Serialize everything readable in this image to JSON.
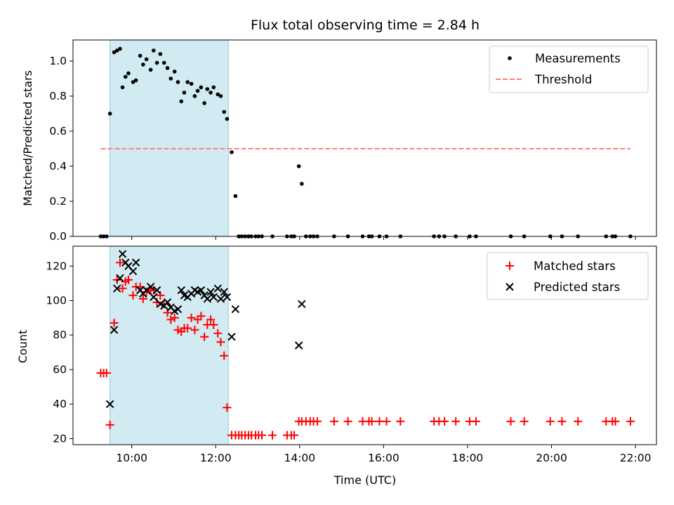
{
  "chart_data": {
    "title": "Flux total observing time = 2.84 h",
    "xlabel": "Time (UTC)",
    "x_unit": "hours UTC",
    "xlim": [
      8.6,
      22.5
    ],
    "xticks": [
      10,
      12,
      14,
      16,
      18,
      20,
      22
    ],
    "xtick_labels": [
      "10:00",
      "12:00",
      "14:00",
      "16:00",
      "18:00",
      "20:00",
      "22:00"
    ],
    "shaded_interval": {
      "x": [
        9.48,
        12.3
      ],
      "color": "#add8e6"
    },
    "panels": [
      {
        "type": "scatter",
        "ylabel": "Matched/Predicted stars",
        "ylim": [
          0,
          1.12
        ],
        "yticks": [
          0.0,
          0.2,
          0.4,
          0.6,
          0.8,
          1.0
        ],
        "ytick_labels": [
          "0.0",
          "0.2",
          "0.4",
          "0.6",
          "0.8",
          "1.0"
        ],
        "legend": {
          "position": "upper right"
        },
        "series": [
          {
            "name": "Measurements",
            "marker": "dot",
            "color": "#000000",
            "x": [
              9.26,
              9.33,
              9.4,
              9.48,
              9.58,
              9.65,
              9.72,
              9.78,
              9.85,
              9.92,
              10.03,
              10.1,
              10.2,
              10.27,
              10.35,
              10.45,
              10.52,
              10.6,
              10.68,
              10.77,
              10.85,
              10.93,
              11.02,
              11.1,
              11.18,
              11.25,
              11.33,
              11.42,
              11.5,
              11.57,
              11.65,
              11.73,
              11.8,
              11.88,
              11.95,
              12.05,
              12.12,
              12.2,
              12.27,
              12.38,
              12.47,
              12.55,
              12.62,
              12.7,
              12.78,
              12.85,
              12.95,
              13.02,
              13.1,
              13.35,
              13.7,
              13.8,
              13.87,
              13.98,
              14.05,
              14.15,
              14.25,
              14.33,
              14.42,
              14.82,
              15.15,
              15.5,
              15.65,
              15.72,
              15.9,
              16.07,
              16.4,
              17.2,
              17.32,
              17.45,
              17.72,
              18.05,
              18.2,
              19.03,
              19.35,
              19.97,
              20.25,
              20.63,
              21.3,
              21.45,
              21.52,
              21.88
            ],
            "y": [
              0,
              0,
              0,
              0.7,
              1.05,
              1.06,
              1.07,
              0.85,
              0.91,
              0.93,
              0.88,
              0.89,
              1.03,
              0.98,
              1.01,
              0.95,
              1.06,
              0.99,
              1.04,
              0.99,
              0.96,
              0.9,
              0.94,
              0.88,
              0.77,
              0.82,
              0.88,
              0.87,
              0.8,
              0.83,
              0.85,
              0.76,
              0.84,
              0.82,
              0.85,
              0.81,
              0.8,
              0.71,
              0.67,
              0.48,
              0.23,
              0,
              0,
              0,
              0,
              0,
              0,
              0,
              0,
              0,
              0,
              0,
              0,
              0.4,
              0.3,
              0,
              0,
              0,
              0,
              0,
              0,
              0,
              0,
              0,
              0,
              0,
              0,
              0,
              0,
              0,
              0,
              0,
              0,
              0,
              0,
              0,
              0,
              0,
              0,
              0,
              0,
              0
            ]
          },
          {
            "name": "Threshold",
            "type": "line",
            "style": "dashed",
            "color": "#ff8080",
            "x": [
              9.26,
              21.88
            ],
            "y": [
              0.5,
              0.5
            ]
          }
        ]
      },
      {
        "type": "scatter",
        "ylabel": "Count",
        "ylim": [
          16.5,
          131.5
        ],
        "yticks": [
          20,
          40,
          60,
          80,
          100,
          120
        ],
        "ytick_labels": [
          "20",
          "40",
          "60",
          "80",
          "100",
          "120"
        ],
        "legend": {
          "position": "upper right"
        },
        "series": [
          {
            "name": "Matched stars",
            "marker": "plus",
            "color": "#ff0000",
            "x": [
              9.26,
              9.33,
              9.4,
              9.48,
              9.58,
              9.65,
              9.72,
              9.78,
              9.85,
              9.92,
              10.03,
              10.1,
              10.2,
              10.27,
              10.35,
              10.45,
              10.52,
              10.6,
              10.68,
              10.77,
              10.85,
              10.93,
              11.02,
              11.1,
              11.18,
              11.25,
              11.33,
              11.42,
              11.5,
              11.57,
              11.65,
              11.73,
              11.8,
              11.88,
              11.95,
              12.05,
              12.12,
              12.2,
              12.27,
              12.38,
              12.47,
              12.55,
              12.62,
              12.7,
              12.78,
              12.85,
              12.95,
              13.02,
              13.1,
              13.35,
              13.7,
              13.8,
              13.87,
              13.98,
              14.05,
              14.15,
              14.25,
              14.33,
              14.42,
              14.82,
              15.15,
              15.5,
              15.65,
              15.72,
              15.9,
              16.07,
              16.4,
              17.2,
              17.32,
              17.45,
              17.72,
              18.05,
              18.2,
              19.03,
              19.35,
              19.97,
              20.25,
              20.63,
              21.3,
              21.45,
              21.52,
              21.88
            ],
            "y": [
              58,
              58,
              58,
              28,
              87,
              112,
              122,
              107,
              111,
              112,
              103,
              108,
              108,
              101,
              105,
              106,
              106,
              99,
              103,
              98,
              93,
              89,
              90,
              83,
              82,
              84,
              84,
              90,
              83,
              89,
              91,
              79,
              86,
              89,
              86,
              81,
              76,
              68,
              38,
              22,
              22,
              22,
              22,
              22,
              22,
              22,
              22,
              22,
              22,
              22,
              22,
              22,
              22,
              30,
              30,
              30,
              30,
              30,
              30,
              30,
              30,
              30,
              30,
              30,
              30,
              30,
              30,
              30,
              30,
              30,
              30,
              30,
              30,
              30,
              30,
              30,
              30,
              30,
              30,
              30,
              30,
              30
            ]
          },
          {
            "name": "Predicted stars",
            "marker": "x",
            "color": "#000000",
            "x": [
              9.48,
              9.58,
              9.65,
              9.72,
              9.78,
              9.85,
              9.92,
              10.03,
              10.1,
              10.2,
              10.27,
              10.35,
              10.45,
              10.52,
              10.6,
              10.68,
              10.77,
              10.85,
              10.93,
              11.02,
              11.1,
              11.18,
              11.25,
              11.33,
              11.42,
              11.5,
              11.57,
              11.65,
              11.73,
              11.8,
              11.88,
              11.95,
              12.05,
              12.12,
              12.2,
              12.27,
              12.38,
              12.47,
              13.98,
              14.05
            ],
            "y": [
              40,
              83,
              107,
              113,
              127,
              122,
              120,
              117,
              122,
              106,
              104,
              106,
              108,
              102,
              106,
              98,
              97,
              99,
              96,
              94,
              95,
              106,
              103,
              102,
              104,
              106,
              105,
              106,
              103,
              101,
              105,
              102,
              107,
              101,
              105,
              102,
              79,
              95,
              74,
              98
            ]
          }
        ]
      }
    ]
  }
}
